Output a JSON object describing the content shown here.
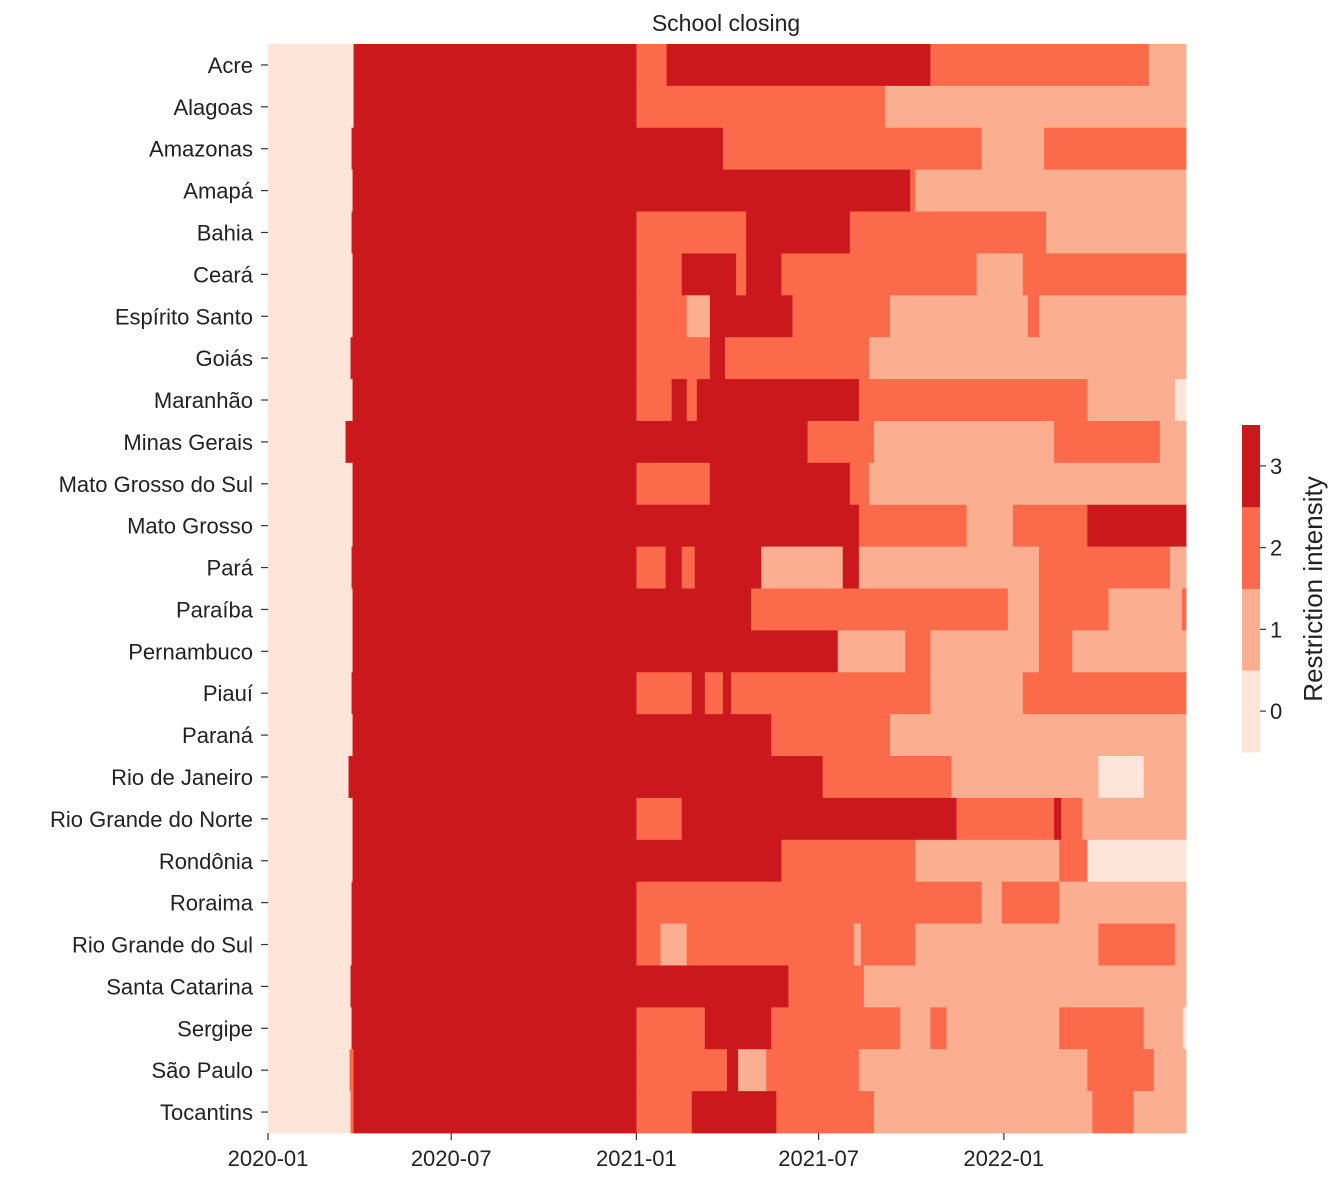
{
  "chart_data": {
    "type": "heatmap",
    "title": "School closing",
    "colorbar_label": "Restriction intensity",
    "colorbar_ticks": [
      0,
      1,
      2,
      3
    ],
    "colorbar_range": [
      -0.5,
      3.5
    ],
    "levels": [
      {
        "value": 0,
        "color": "#fee5d9"
      },
      {
        "value": 1,
        "color": "#fcae91"
      },
      {
        "value": 2,
        "color": "#fb6a4a"
      },
      {
        "value": 3,
        "color": "#cb181d"
      }
    ],
    "x_range": [
      "2020-01-01",
      "2022-07-01"
    ],
    "x_ticks": [
      "2020-01",
      "2020-07",
      "2021-01",
      "2021-07",
      "2022-01"
    ],
    "rows": [
      {
        "state": "Acre",
        "segments": [
          [
            "2020-01-01",
            0
          ],
          [
            "2020-03-26",
            3
          ],
          [
            "2021-01-01",
            2
          ],
          [
            "2021-01-31",
            3
          ],
          [
            "2021-10-20",
            2
          ],
          [
            "2022-05-25",
            1
          ]
        ]
      },
      {
        "state": "Alagoas",
        "segments": [
          [
            "2020-01-01",
            0
          ],
          [
            "2020-03-26",
            3
          ],
          [
            "2021-01-01",
            2
          ],
          [
            "2021-09-05",
            1
          ]
        ]
      },
      {
        "state": "Amazonas",
        "segments": [
          [
            "2020-01-01",
            0
          ],
          [
            "2020-03-24",
            3
          ],
          [
            "2021-01-01",
            3
          ],
          [
            "2021-03-28",
            2
          ],
          [
            "2021-12-10",
            1
          ],
          [
            "2022-02-10",
            2
          ]
        ]
      },
      {
        "state": "Amapá",
        "segments": [
          [
            "2020-01-01",
            0
          ],
          [
            "2020-03-25",
            3
          ],
          [
            "2021-01-01",
            3
          ],
          [
            "2021-09-30",
            2
          ],
          [
            "2021-10-05",
            1
          ]
        ]
      },
      {
        "state": "Bahia",
        "segments": [
          [
            "2020-01-01",
            0
          ],
          [
            "2020-03-24",
            3
          ],
          [
            "2021-01-01",
            2
          ],
          [
            "2021-04-20",
            3
          ],
          [
            "2021-08-01",
            2
          ],
          [
            "2022-02-12",
            1
          ]
        ]
      },
      {
        "state": "Ceará",
        "segments": [
          [
            "2020-01-01",
            0
          ],
          [
            "2020-03-25",
            3
          ],
          [
            "2021-01-01",
            2
          ],
          [
            "2021-02-15",
            3
          ],
          [
            "2021-04-10",
            2
          ],
          [
            "2021-04-20",
            3
          ],
          [
            "2021-05-25",
            2
          ],
          [
            "2021-12-05",
            1
          ],
          [
            "2022-01-20",
            2
          ]
        ]
      },
      {
        "state": "Espírito Santo",
        "segments": [
          [
            "2020-01-01",
            0
          ],
          [
            "2020-03-25",
            3
          ],
          [
            "2021-01-01",
            2
          ],
          [
            "2021-02-20",
            1
          ],
          [
            "2021-03-15",
            3
          ],
          [
            "2021-06-05",
            2
          ],
          [
            "2021-09-10",
            1
          ],
          [
            "2022-01-25",
            2
          ],
          [
            "2022-02-05",
            1
          ]
        ]
      },
      {
        "state": "Goiás",
        "segments": [
          [
            "2020-01-01",
            0
          ],
          [
            "2020-03-23",
            3
          ],
          [
            "2021-01-01",
            2
          ],
          [
            "2021-03-15",
            3
          ],
          [
            "2021-03-30",
            2
          ],
          [
            "2021-08-20",
            1
          ]
        ]
      },
      {
        "state": "Maranhão",
        "segments": [
          [
            "2020-01-01",
            0
          ],
          [
            "2020-03-25",
            3
          ],
          [
            "2021-01-01",
            2
          ],
          [
            "2021-02-05",
            3
          ],
          [
            "2021-02-20",
            2
          ],
          [
            "2021-03-02",
            3
          ],
          [
            "2021-08-10",
            2
          ],
          [
            "2022-03-25",
            1
          ],
          [
            "2022-06-20",
            0
          ]
        ]
      },
      {
        "state": "Minas Gerais",
        "segments": [
          [
            "2020-01-01",
            0
          ],
          [
            "2020-03-18",
            3
          ],
          [
            "2021-01-01",
            3
          ],
          [
            "2021-06-20",
            2
          ],
          [
            "2021-08-25",
            1
          ],
          [
            "2022-02-20",
            2
          ],
          [
            "2022-06-05",
            1
          ]
        ]
      },
      {
        "state": "Mato Grosso do Sul",
        "segments": [
          [
            "2020-01-01",
            0
          ],
          [
            "2020-03-25",
            3
          ],
          [
            "2021-01-01",
            2
          ],
          [
            "2021-03-15",
            3
          ],
          [
            "2021-08-01",
            2
          ],
          [
            "2021-08-20",
            1
          ]
        ]
      },
      {
        "state": "Mato Grosso",
        "segments": [
          [
            "2020-01-01",
            0
          ],
          [
            "2020-03-25",
            3
          ],
          [
            "2021-01-01",
            3
          ],
          [
            "2021-08-10",
            2
          ],
          [
            "2021-11-25",
            1
          ],
          [
            "2022-01-10",
            2
          ],
          [
            "2022-03-25",
            3
          ]
        ]
      },
      {
        "state": "Pará",
        "segments": [
          [
            "2020-01-01",
            0
          ],
          [
            "2020-03-24",
            3
          ],
          [
            "2021-01-01",
            2
          ],
          [
            "2021-01-30",
            3
          ],
          [
            "2021-02-15",
            2
          ],
          [
            "2021-02-28",
            3
          ],
          [
            "2021-05-05",
            1
          ],
          [
            "2021-07-25",
            3
          ],
          [
            "2021-08-10",
            1
          ],
          [
            "2022-02-05",
            2
          ],
          [
            "2022-06-15",
            1
          ]
        ]
      },
      {
        "state": "Paraíba",
        "segments": [
          [
            "2020-01-01",
            0
          ],
          [
            "2020-03-25",
            3
          ],
          [
            "2021-01-01",
            3
          ],
          [
            "2021-04-25",
            2
          ],
          [
            "2022-01-05",
            1
          ],
          [
            "2022-02-05",
            2
          ],
          [
            "2022-04-15",
            1
          ],
          [
            "2022-06-27",
            2
          ]
        ]
      },
      {
        "state": "Pernambuco",
        "segments": [
          [
            "2020-01-01",
            0
          ],
          [
            "2020-03-25",
            3
          ],
          [
            "2021-01-01",
            3
          ],
          [
            "2021-07-20",
            1
          ],
          [
            "2021-09-25",
            2
          ],
          [
            "2021-10-20",
            1
          ],
          [
            "2022-02-05",
            2
          ],
          [
            "2022-03-10",
            1
          ]
        ]
      },
      {
        "state": "Piauí",
        "segments": [
          [
            "2020-01-01",
            0
          ],
          [
            "2020-03-24",
            3
          ],
          [
            "2021-01-01",
            2
          ],
          [
            "2021-02-25",
            3
          ],
          [
            "2021-03-10",
            2
          ],
          [
            "2021-03-28",
            3
          ],
          [
            "2021-04-05",
            2
          ],
          [
            "2021-10-20",
            1
          ],
          [
            "2022-01-20",
            2
          ]
        ]
      },
      {
        "state": "Paraná",
        "segments": [
          [
            "2020-01-01",
            0
          ],
          [
            "2020-03-25",
            3
          ],
          [
            "2021-01-01",
            3
          ],
          [
            "2021-05-15",
            2
          ],
          [
            "2021-09-10",
            1
          ]
        ]
      },
      {
        "state": "Rio de Janeiro",
        "segments": [
          [
            "2020-01-01",
            0
          ],
          [
            "2020-03-21",
            3
          ],
          [
            "2021-01-01",
            3
          ],
          [
            "2021-07-05",
            2
          ],
          [
            "2021-11-10",
            1
          ],
          [
            "2022-04-05",
            0
          ],
          [
            "2022-05-20",
            1
          ]
        ]
      },
      {
        "state": "Rio Grande do Norte",
        "segments": [
          [
            "2020-01-01",
            0
          ],
          [
            "2020-03-25",
            3
          ],
          [
            "2021-01-01",
            2
          ],
          [
            "2021-02-15",
            3
          ],
          [
            "2021-11-15",
            2
          ],
          [
            "2022-02-20",
            3
          ],
          [
            "2022-02-27",
            2
          ],
          [
            "2022-03-20",
            1
          ]
        ]
      },
      {
        "state": "Rondônia",
        "segments": [
          [
            "2020-01-01",
            0
          ],
          [
            "2020-03-25",
            3
          ],
          [
            "2021-01-01",
            3
          ],
          [
            "2021-05-25",
            2
          ],
          [
            "2021-10-05",
            1
          ],
          [
            "2022-02-25",
            2
          ],
          [
            "2022-03-25",
            0
          ]
        ]
      },
      {
        "state": "Roraima",
        "segments": [
          [
            "2020-01-01",
            0
          ],
          [
            "2020-03-24",
            3
          ],
          [
            "2021-01-01",
            2
          ],
          [
            "2021-12-10",
            1
          ],
          [
            "2021-12-30",
            2
          ],
          [
            "2022-02-25",
            1
          ]
        ]
      },
      {
        "state": "Rio Grande do Sul",
        "segments": [
          [
            "2020-01-01",
            0
          ],
          [
            "2020-03-24",
            3
          ],
          [
            "2021-01-01",
            2
          ],
          [
            "2021-01-25",
            1
          ],
          [
            "2021-02-20",
            2
          ],
          [
            "2021-08-05",
            1
          ],
          [
            "2021-08-12",
            2
          ],
          [
            "2021-10-05",
            1
          ],
          [
            "2022-04-05",
            2
          ],
          [
            "2022-06-20",
            1
          ]
        ]
      },
      {
        "state": "Santa Catarina",
        "segments": [
          [
            "2020-01-01",
            0
          ],
          [
            "2020-03-23",
            3
          ],
          [
            "2021-01-01",
            3
          ],
          [
            "2021-06-01",
            2
          ],
          [
            "2021-08-15",
            1
          ]
        ]
      },
      {
        "state": "Sergipe",
        "segments": [
          [
            "2020-01-01",
            0
          ],
          [
            "2020-03-24",
            3
          ],
          [
            "2021-01-01",
            2
          ],
          [
            "2021-03-10",
            3
          ],
          [
            "2021-05-15",
            2
          ],
          [
            "2021-09-20",
            1
          ],
          [
            "2021-10-20",
            2
          ],
          [
            "2021-11-05",
            1
          ],
          [
            "2022-02-25",
            2
          ],
          [
            "2022-05-20",
            1
          ],
          [
            "2022-06-28",
            0
          ]
        ]
      },
      {
        "state": "São Paulo",
        "segments": [
          [
            "2020-01-01",
            0
          ],
          [
            "2020-03-22",
            2
          ],
          [
            "2020-03-26",
            3
          ],
          [
            "2021-01-01",
            2
          ],
          [
            "2021-04-01",
            3
          ],
          [
            "2021-04-12",
            1
          ],
          [
            "2021-05-10",
            2
          ],
          [
            "2021-08-10",
            1
          ],
          [
            "2022-03-25",
            2
          ],
          [
            "2022-05-30",
            1
          ]
        ]
      },
      {
        "state": "Tocantins",
        "segments": [
          [
            "2020-01-01",
            0
          ],
          [
            "2020-03-23",
            2
          ],
          [
            "2020-03-26",
            3
          ],
          [
            "2021-01-01",
            2
          ],
          [
            "2021-02-25",
            3
          ],
          [
            "2021-05-20",
            2
          ],
          [
            "2021-08-25",
            1
          ],
          [
            "2022-03-30",
            2
          ],
          [
            "2022-05-10",
            1
          ]
        ]
      }
    ]
  }
}
